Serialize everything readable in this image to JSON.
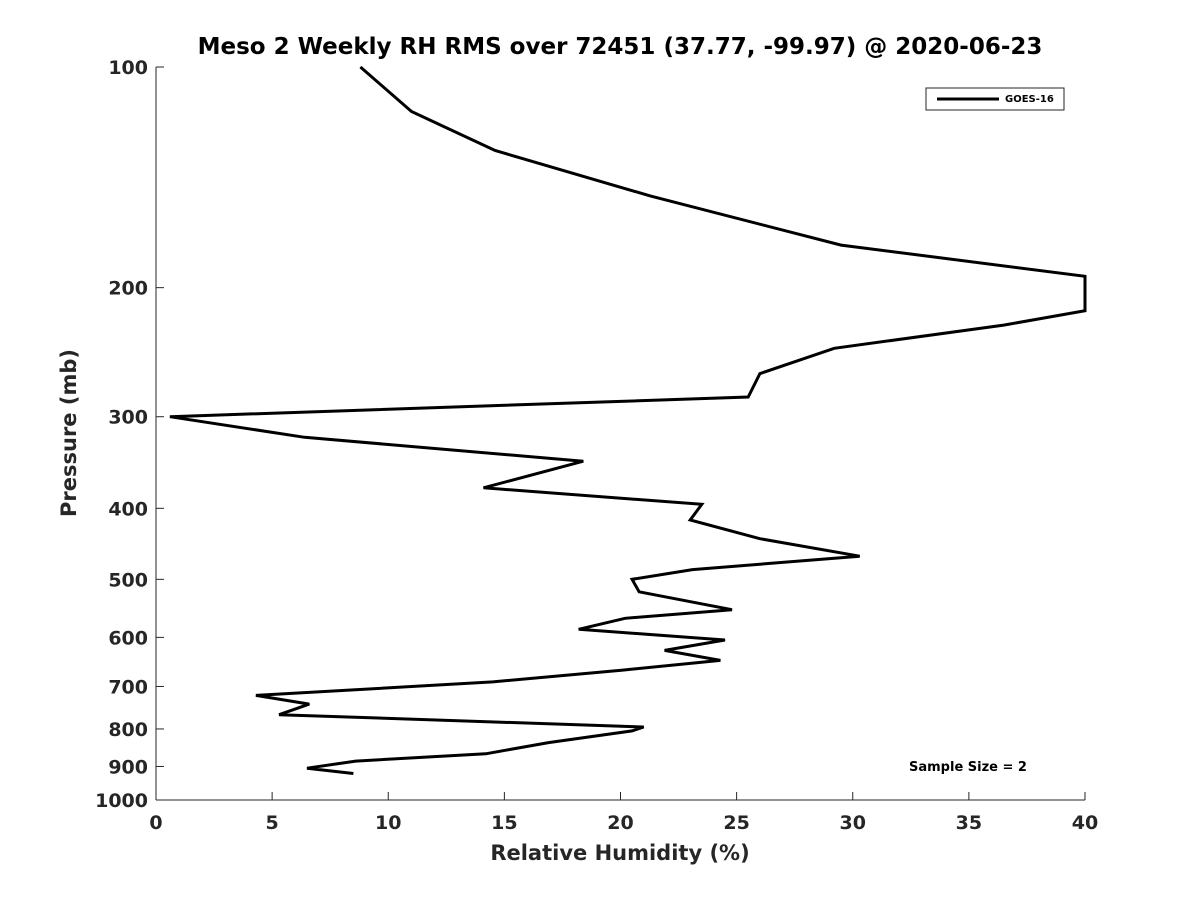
{
  "chart_data": {
    "type": "line",
    "title": "Meso 2 Weekly RH RMS over 72451 (37.77, -99.97) @ 2020-06-23",
    "xlabel": "Relative Humidity (%)",
    "ylabel": "Pressure (mb)",
    "xlim": [
      0,
      40
    ],
    "ylim": [
      100,
      1000
    ],
    "yscale": "log",
    "yinverted": true,
    "xticks": [
      0,
      5,
      10,
      15,
      20,
      25,
      30,
      35,
      40
    ],
    "yticks": [
      100,
      200,
      300,
      400,
      500,
      600,
      700,
      800,
      900,
      1000
    ],
    "grid": false,
    "legend_position": "top-right",
    "annotation": "Sample Size = 2",
    "series": [
      {
        "name": "GOES-16",
        "color": "#000000",
        "x": [
          8.8,
          11.0,
          14.6,
          21.3,
          29.5,
          40.0,
          40.0,
          36.5,
          29.2,
          26.0,
          25.5,
          0.6,
          6.4,
          18.4,
          14.1,
          23.5,
          23.0,
          26.0,
          30.3,
          23.1,
          20.5,
          20.8,
          24.8,
          20.2,
          18.2,
          24.5,
          21.9,
          24.3,
          20.1,
          14.5,
          4.3,
          6.6,
          5.3,
          21.0,
          20.5,
          16.9,
          14.2,
          8.6,
          6.5,
          8.5
        ],
        "y": [
          100,
          115,
          130,
          150,
          175,
          193,
          215,
          225,
          242,
          262,
          282,
          300,
          320,
          345,
          375,
          395,
          415,
          440,
          465,
          485,
          500,
          520,
          550,
          565,
          585,
          605,
          625,
          645,
          665,
          690,
          720,
          740,
          765,
          795,
          805,
          835,
          865,
          885,
          905,
          920
        ]
      }
    ]
  }
}
